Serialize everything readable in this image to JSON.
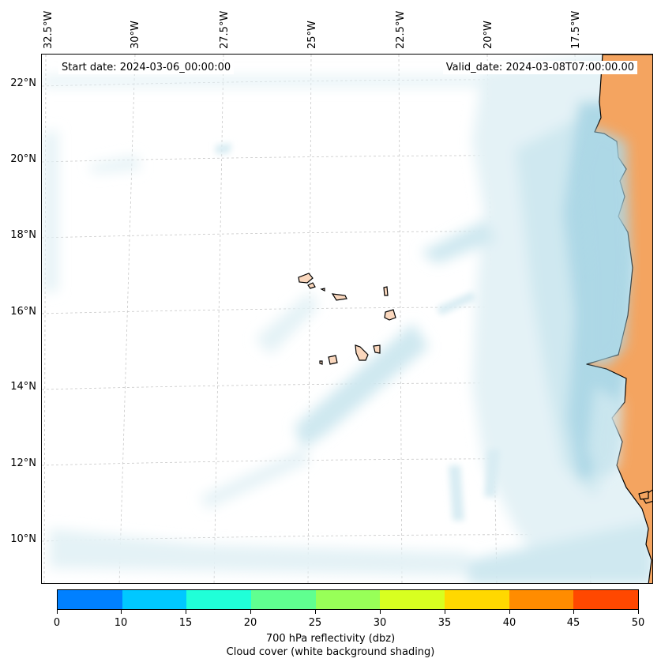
{
  "header": {
    "start_date": "Start date: 2024-03-06_00:00:00",
    "valid_date": "Valid_date: 2024-03-08T07:00:00.00"
  },
  "map": {
    "longitude_labels": [
      "32.5°W",
      "30°W",
      "27.5°W",
      "25°W",
      "22.5°W",
      "20°W",
      "17.5°W"
    ],
    "latitude_labels": [
      "22°N",
      "20°N",
      "18°N",
      "16°N",
      "14°N",
      "12°N",
      "10°N"
    ],
    "colors": {
      "cloud_light": "#e4f2f6",
      "cloud_mid": "#cfe8f0",
      "cloud_dense": "#add8e6",
      "land": "#f4a460",
      "land_light": "#fad7bd",
      "coastline": "#000000",
      "gridline": "#c8c8c8"
    }
  },
  "colorbar": {
    "tick_labels": [
      "0",
      "10",
      "15",
      "20",
      "25",
      "30",
      "35",
      "40",
      "45",
      "50"
    ],
    "colors": [
      "#0080ff",
      "#00c8ff",
      "#20ffd8",
      "#60ff90",
      "#98ff58",
      "#d8ff20",
      "#ffd800",
      "#ff8c00",
      "#ff4800"
    ],
    "label_line1": "700 hPa reflectivity (dbz)",
    "label_line2": "Cloud cover (white background shading)"
  }
}
